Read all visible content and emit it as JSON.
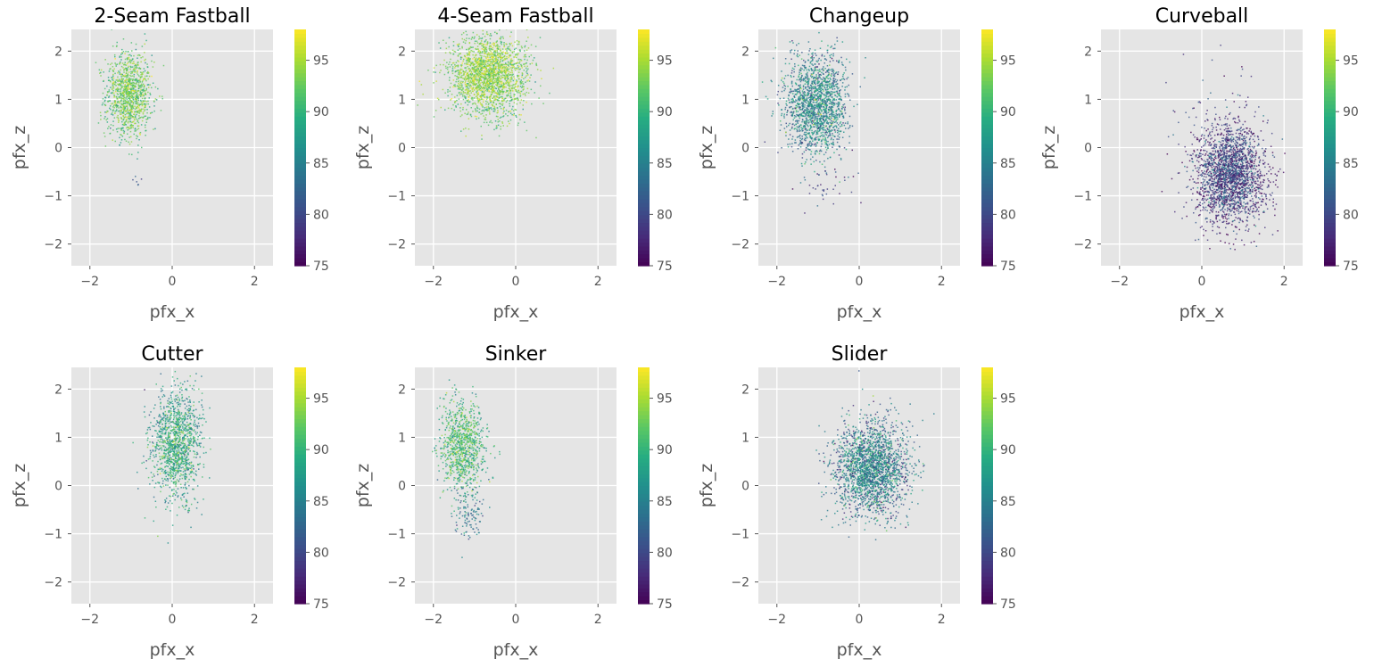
{
  "chart_data": [
    {
      "type": "scatter",
      "title": "2-Seam Fastball",
      "xlabel": "pfx_x",
      "ylabel": "pfx_z",
      "xlim": [
        -2.45,
        2.45
      ],
      "ylim": [
        -2.45,
        2.45
      ],
      "xticks": [
        -2,
        0,
        2
      ],
      "yticks": [
        -2,
        -1,
        0,
        1,
        2
      ],
      "grid": true,
      "colorbar": {
        "label": "",
        "range": [
          75,
          98
        ],
        "ticks": [
          75,
          80,
          85,
          90,
          95
        ]
      },
      "clusters": [
        {
          "cx": -1.05,
          "cy": 1.1,
          "sx": 0.28,
          "sy": 0.45,
          "n": 1100,
          "speed": 93,
          "speed_sd": 2.2
        },
        {
          "cx": -0.85,
          "cy": -0.7,
          "sx": 0.06,
          "sy": 0.08,
          "n": 6,
          "speed": 81,
          "speed_sd": 1
        }
      ]
    },
    {
      "type": "scatter",
      "title": "4-Seam Fastball",
      "xlabel": "pfx_x",
      "ylabel": "pfx_z",
      "xlim": [
        -2.45,
        2.45
      ],
      "ylim": [
        -2.45,
        2.45
      ],
      "xticks": [
        -2,
        0,
        2
      ],
      "yticks": [
        -2,
        -1,
        0,
        1,
        2
      ],
      "grid": true,
      "colorbar": {
        "label": "",
        "range": [
          75,
          98
        ],
        "ticks": [
          75,
          80,
          85,
          90,
          95
        ]
      },
      "clusters": [
        {
          "cx": -0.65,
          "cy": 1.5,
          "sx": 0.48,
          "sy": 0.42,
          "n": 2000,
          "speed": 94,
          "speed_sd": 2
        }
      ]
    },
    {
      "type": "scatter",
      "title": "Changeup",
      "xlabel": "pfx_x",
      "ylabel": "pfx_z",
      "xlim": [
        -2.45,
        2.45
      ],
      "ylim": [
        -2.45,
        2.45
      ],
      "xticks": [
        -2,
        0,
        2
      ],
      "yticks": [
        -2,
        -1,
        0,
        1,
        2
      ],
      "grid": true,
      "colorbar": {
        "label": "",
        "range": [
          75,
          98
        ],
        "ticks": [
          75,
          80,
          85,
          90,
          95
        ]
      },
      "clusters": [
        {
          "cx": -1.05,
          "cy": 0.9,
          "sx": 0.38,
          "sy": 0.5,
          "n": 1700,
          "speed": 86,
          "speed_sd": 3.2
        },
        {
          "cx": -0.7,
          "cy": -0.9,
          "sx": 0.4,
          "sy": 0.25,
          "n": 35,
          "speed": 79,
          "speed_sd": 2
        }
      ]
    },
    {
      "type": "scatter",
      "title": "Curveball",
      "xlabel": "pfx_x",
      "ylabel": "pfx_z",
      "xlim": [
        -2.45,
        2.45
      ],
      "ylim": [
        -2.45,
        2.45
      ],
      "xticks": [
        -2,
        0,
        2
      ],
      "yticks": [
        -2,
        -1,
        0,
        1,
        2
      ],
      "grid": true,
      "colorbar": {
        "label": "",
        "range": [
          75,
          98
        ],
        "ticks": [
          75,
          80,
          85,
          90,
          95
        ]
      },
      "clusters": [
        {
          "cx": 0.7,
          "cy": -0.55,
          "sx": 0.42,
          "sy": 0.5,
          "n": 2200,
          "speed": 79.5,
          "speed_sd": 3
        },
        {
          "cx": 0.3,
          "cy": 0.6,
          "sx": 0.7,
          "sy": 0.6,
          "n": 60,
          "speed": 80,
          "speed_sd": 3
        }
      ]
    },
    {
      "type": "scatter",
      "title": "Cutter",
      "xlabel": "pfx_x",
      "ylabel": "pfx_z",
      "xlim": [
        -2.45,
        2.45
      ],
      "ylim": [
        -2.45,
        2.45
      ],
      "xticks": [
        -2,
        0,
        2
      ],
      "yticks": [
        -2,
        -1,
        0,
        1,
        2
      ],
      "grid": true,
      "colorbar": {
        "label": "",
        "range": [
          75,
          98
        ],
        "ticks": [
          75,
          80,
          85,
          90,
          95
        ]
      },
      "clusters": [
        {
          "cx": 0.1,
          "cy": 0.85,
          "sx": 0.3,
          "sy": 0.55,
          "n": 1300,
          "speed": 89,
          "speed_sd": 3
        }
      ]
    },
    {
      "type": "scatter",
      "title": "Sinker",
      "xlabel": "pfx_x",
      "ylabel": "pfx_z",
      "xlim": [
        -2.45,
        2.45
      ],
      "ylim": [
        -2.45,
        2.45
      ],
      "xticks": [
        -2,
        0,
        2
      ],
      "yticks": [
        -2,
        -1,
        0,
        1,
        2
      ],
      "grid": true,
      "colorbar": {
        "label": "",
        "range": [
          75,
          98
        ],
        "ticks": [
          75,
          80,
          85,
          90,
          95
        ]
      },
      "clusters": [
        {
          "cx": -1.3,
          "cy": 0.85,
          "sx": 0.27,
          "sy": 0.48,
          "n": 950,
          "speed": 91,
          "speed_sd": 2.5
        },
        {
          "cx": -1.15,
          "cy": -0.6,
          "sx": 0.18,
          "sy": 0.3,
          "n": 110,
          "speed": 84,
          "speed_sd": 2
        }
      ]
    },
    {
      "type": "scatter",
      "title": "Slider",
      "xlabel": "pfx_x",
      "ylabel": "pfx_z",
      "xlim": [
        -2.45,
        2.45
      ],
      "ylim": [
        -2.45,
        2.45
      ],
      "xticks": [
        -2,
        0,
        2
      ],
      "yticks": [
        -2,
        -1,
        0,
        1,
        2
      ],
      "grid": true,
      "colorbar": {
        "label": "",
        "range": [
          75,
          98
        ],
        "ticks": [
          75,
          80,
          85,
          90,
          95
        ]
      },
      "clusters": [
        {
          "cx": 0.3,
          "cy": 0.35,
          "sx": 0.45,
          "sy": 0.48,
          "n": 2200,
          "speed": 85,
          "speed_sd": 3.5
        }
      ]
    }
  ],
  "colors": {
    "panel_bg": "#e5e5e5",
    "grid": "#ffffff",
    "spine": "#bcbcbc",
    "text": "#000000",
    "tick_text": "#555555"
  },
  "colormap": "viridis"
}
